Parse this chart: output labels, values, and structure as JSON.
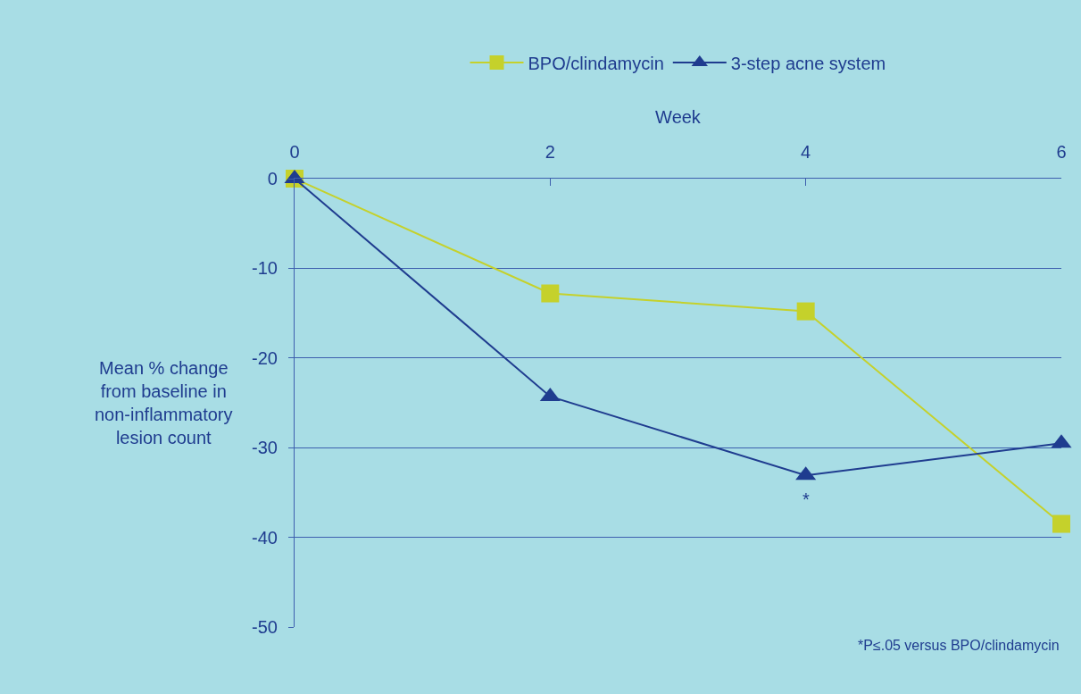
{
  "chart_data": {
    "type": "line",
    "xlabel": "Week",
    "ylabel": "Mean % change from baseline in non-inflammatory lesion count",
    "x": [
      0,
      2,
      4,
      6
    ],
    "series": [
      {
        "name": "BPO/clindamycin",
        "color": "#c5d12b",
        "marker": "square",
        "values": [
          0,
          -12.8,
          -14.8,
          -38.5
        ]
      },
      {
        "name": "3-step acne system",
        "color": "#1f3c8f",
        "marker": "triangle",
        "values": [
          0,
          -24.3,
          -33.1,
          -29.5
        ]
      }
    ],
    "xlim": [
      0,
      6
    ],
    "xticks": [
      0,
      2,
      4,
      6
    ],
    "ylim": [
      -50,
      0
    ],
    "yticks": [
      0,
      -10,
      -20,
      -30,
      -40,
      -50
    ],
    "grid": "y",
    "legend": "top",
    "line_style": "solid",
    "annotations": [
      {
        "text": "*",
        "x": 4,
        "y": -33.1
      },
      "*P≤.05 versus BPO/clindamycin"
    ]
  }
}
